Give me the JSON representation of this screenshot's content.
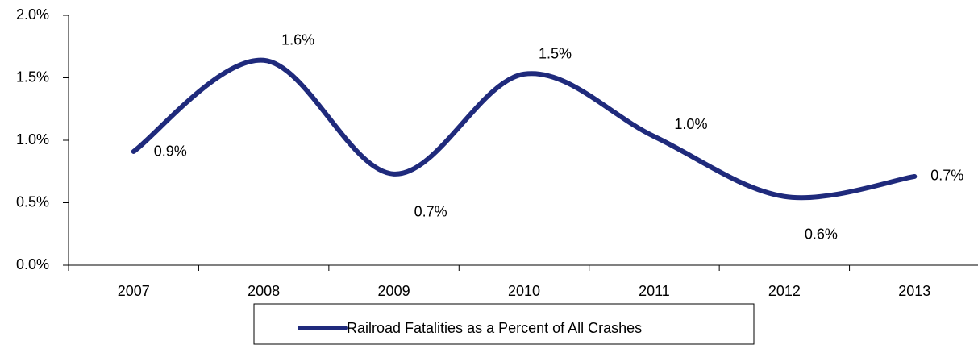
{
  "chart_data": {
    "type": "line",
    "categories": [
      "2007",
      "2008",
      "2009",
      "2010",
      "2011",
      "2012",
      "2013"
    ],
    "series": [
      {
        "name": "Railroad Fatalities as a Percent of All Crashes",
        "color": "#1f2a7c",
        "values": [
          0.91,
          1.64,
          0.73,
          1.53,
          1.03,
          0.55,
          0.71
        ],
        "value_labels": [
          "0.9%",
          "1.6%",
          "0.7%",
          "1.5%",
          "1.0%",
          "0.6%",
          "0.7%"
        ]
      }
    ],
    "ylim": [
      0,
      2
    ],
    "yticks": [
      {
        "value": 0,
        "label": "0.0%"
      },
      {
        "value": 0.5,
        "label": "0.5%"
      },
      {
        "value": 1,
        "label": "1.0%"
      },
      {
        "value": 1.5,
        "label": "1.5%"
      },
      {
        "value": 2,
        "label": "2.0%"
      }
    ],
    "smooth": true,
    "legend": "bottom"
  }
}
